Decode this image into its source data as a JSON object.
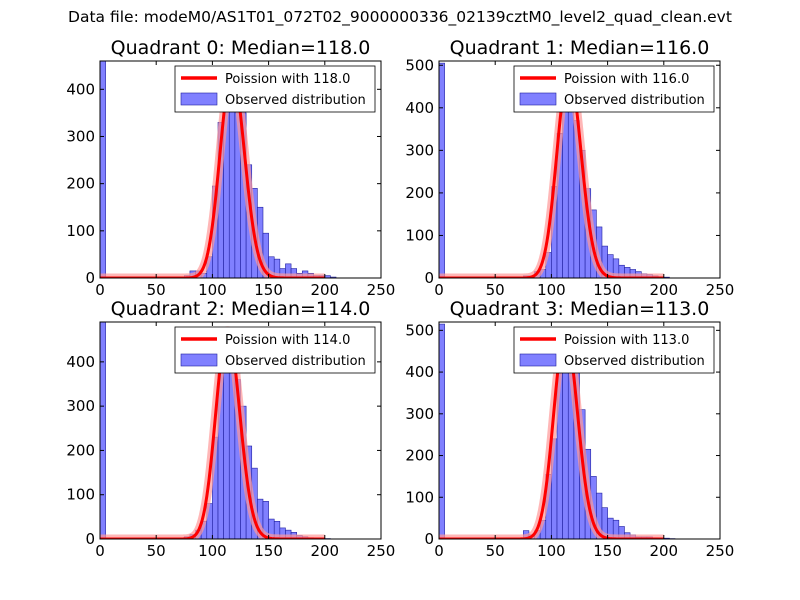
{
  "figure": {
    "suptitle": "Data file: modeM0/AS1T01_072T02_9000000336_02139cztM0_level2_quad_clean.evt"
  },
  "colors": {
    "bar_fill": "#8080ff",
    "bar_edge": "#2020a0",
    "poisson_line": "#ff0000",
    "poisson_shadow": "#ff9999"
  },
  "chart_data": [
    {
      "type": "bar",
      "title": "Quadrant 0: Median=118.0",
      "xlim": [
        0,
        250
      ],
      "ylim": [
        0,
        460
      ],
      "xticks": [
        0,
        50,
        100,
        150,
        200,
        250
      ],
      "yticks": [
        0,
        100,
        200,
        300,
        400
      ],
      "bin_width": 5,
      "bins": [
        0,
        5,
        10,
        15,
        20,
        25,
        30,
        35,
        40,
        45,
        50,
        55,
        60,
        65,
        70,
        75,
        80,
        85,
        90,
        95,
        100,
        105,
        110,
        115,
        120,
        125,
        130,
        135,
        140,
        145,
        150,
        155,
        160,
        165,
        170,
        175,
        180,
        185,
        190,
        195,
        200,
        205
      ],
      "values": [
        460,
        0,
        0,
        0,
        0,
        0,
        0,
        0,
        0,
        0,
        0,
        0,
        0,
        0,
        0,
        5,
        15,
        15,
        10,
        45,
        195,
        330,
        430,
        410,
        350,
        350,
        240,
        190,
        150,
        95,
        45,
        40,
        20,
        30,
        20,
        10,
        15,
        10,
        5,
        5,
        5,
        2
      ],
      "legend": {
        "line_label": "Poission with 118.0",
        "bar_label": "Observed distribution"
      },
      "poisson_mean": 118.0,
      "poisson_peak": 437
    },
    {
      "type": "bar",
      "title": "Quadrant 1: Median=116.0",
      "xlim": [
        0,
        250
      ],
      "ylim": [
        0,
        510
      ],
      "xticks": [
        0,
        50,
        100,
        150,
        200,
        250
      ],
      "yticks": [
        0,
        100,
        200,
        300,
        400,
        500
      ],
      "bin_width": 5,
      "bins": [
        0,
        5,
        10,
        15,
        20,
        25,
        30,
        35,
        40,
        45,
        50,
        55,
        60,
        65,
        70,
        75,
        80,
        85,
        90,
        95,
        100,
        105,
        110,
        115,
        120,
        125,
        130,
        135,
        140,
        145,
        150,
        155,
        160,
        165,
        170,
        175,
        180,
        185,
        190,
        195,
        200
      ],
      "values": [
        505,
        0,
        0,
        0,
        0,
        0,
        0,
        0,
        0,
        0,
        0,
        0,
        0,
        0,
        0,
        5,
        5,
        15,
        20,
        60,
        215,
        340,
        430,
        450,
        370,
        300,
        210,
        160,
        120,
        75,
        55,
        45,
        30,
        25,
        20,
        15,
        10,
        8,
        5,
        3,
        2
      ],
      "legend": {
        "line_label": "Poission with 116.0",
        "bar_label": "Observed distribution"
      },
      "poisson_mean": 116.0,
      "poisson_peak": 485
    },
    {
      "type": "bar",
      "title": "Quadrant 2: Median=114.0",
      "xlim": [
        0,
        250
      ],
      "ylim": [
        0,
        490
      ],
      "xticks": [
        0,
        50,
        100,
        150,
        200,
        250
      ],
      "yticks": [
        0,
        100,
        200,
        300,
        400
      ],
      "bin_width": 5,
      "bins": [
        0,
        5,
        10,
        15,
        20,
        25,
        30,
        35,
        40,
        45,
        50,
        55,
        60,
        65,
        70,
        75,
        80,
        85,
        90,
        95,
        100,
        105,
        110,
        115,
        120,
        125,
        130,
        135,
        140,
        145,
        150,
        155,
        160,
        165,
        170,
        175,
        180,
        185,
        190,
        195,
        200
      ],
      "values": [
        490,
        0,
        0,
        0,
        0,
        0,
        0,
        0,
        0,
        0,
        0,
        0,
        0,
        0,
        0,
        5,
        10,
        20,
        40,
        80,
        230,
        380,
        440,
        435,
        360,
        300,
        210,
        160,
        90,
        85,
        45,
        40,
        25,
        20,
        15,
        8,
        5,
        3,
        2,
        2,
        1
      ],
      "legend": {
        "line_label": "Poission with 114.0",
        "bar_label": "Observed distribution"
      },
      "poisson_mean": 114.0,
      "poisson_peak": 470
    },
    {
      "type": "bar",
      "title": "Quadrant 3: Median=113.0",
      "xlim": [
        0,
        250
      ],
      "ylim": [
        0,
        520
      ],
      "xticks": [
        0,
        50,
        100,
        150,
        200,
        250
      ],
      "yticks": [
        0,
        100,
        200,
        300,
        400,
        500
      ],
      "bin_width": 5,
      "bins": [
        0,
        5,
        10,
        15,
        20,
        25,
        30,
        35,
        40,
        45,
        50,
        55,
        60,
        65,
        70,
        75,
        80,
        85,
        90,
        95,
        100,
        105,
        110,
        115,
        120,
        125,
        130,
        135,
        140,
        145,
        150,
        155,
        160,
        165,
        170,
        175,
        180,
        185,
        190,
        195,
        200,
        205
      ],
      "values": [
        515,
        0,
        0,
        0,
        0,
        0,
        0,
        0,
        0,
        0,
        0,
        0,
        0,
        0,
        0,
        20,
        10,
        20,
        45,
        155,
        240,
        410,
        470,
        490,
        400,
        310,
        215,
        150,
        110,
        75,
        50,
        45,
        30,
        15,
        10,
        5,
        5,
        5,
        3,
        2,
        2,
        1
      ],
      "legend": {
        "line_label": "Poission with 113.0",
        "bar_label": "Observed distribution"
      },
      "poisson_mean": 113.0,
      "poisson_peak": 495
    }
  ]
}
